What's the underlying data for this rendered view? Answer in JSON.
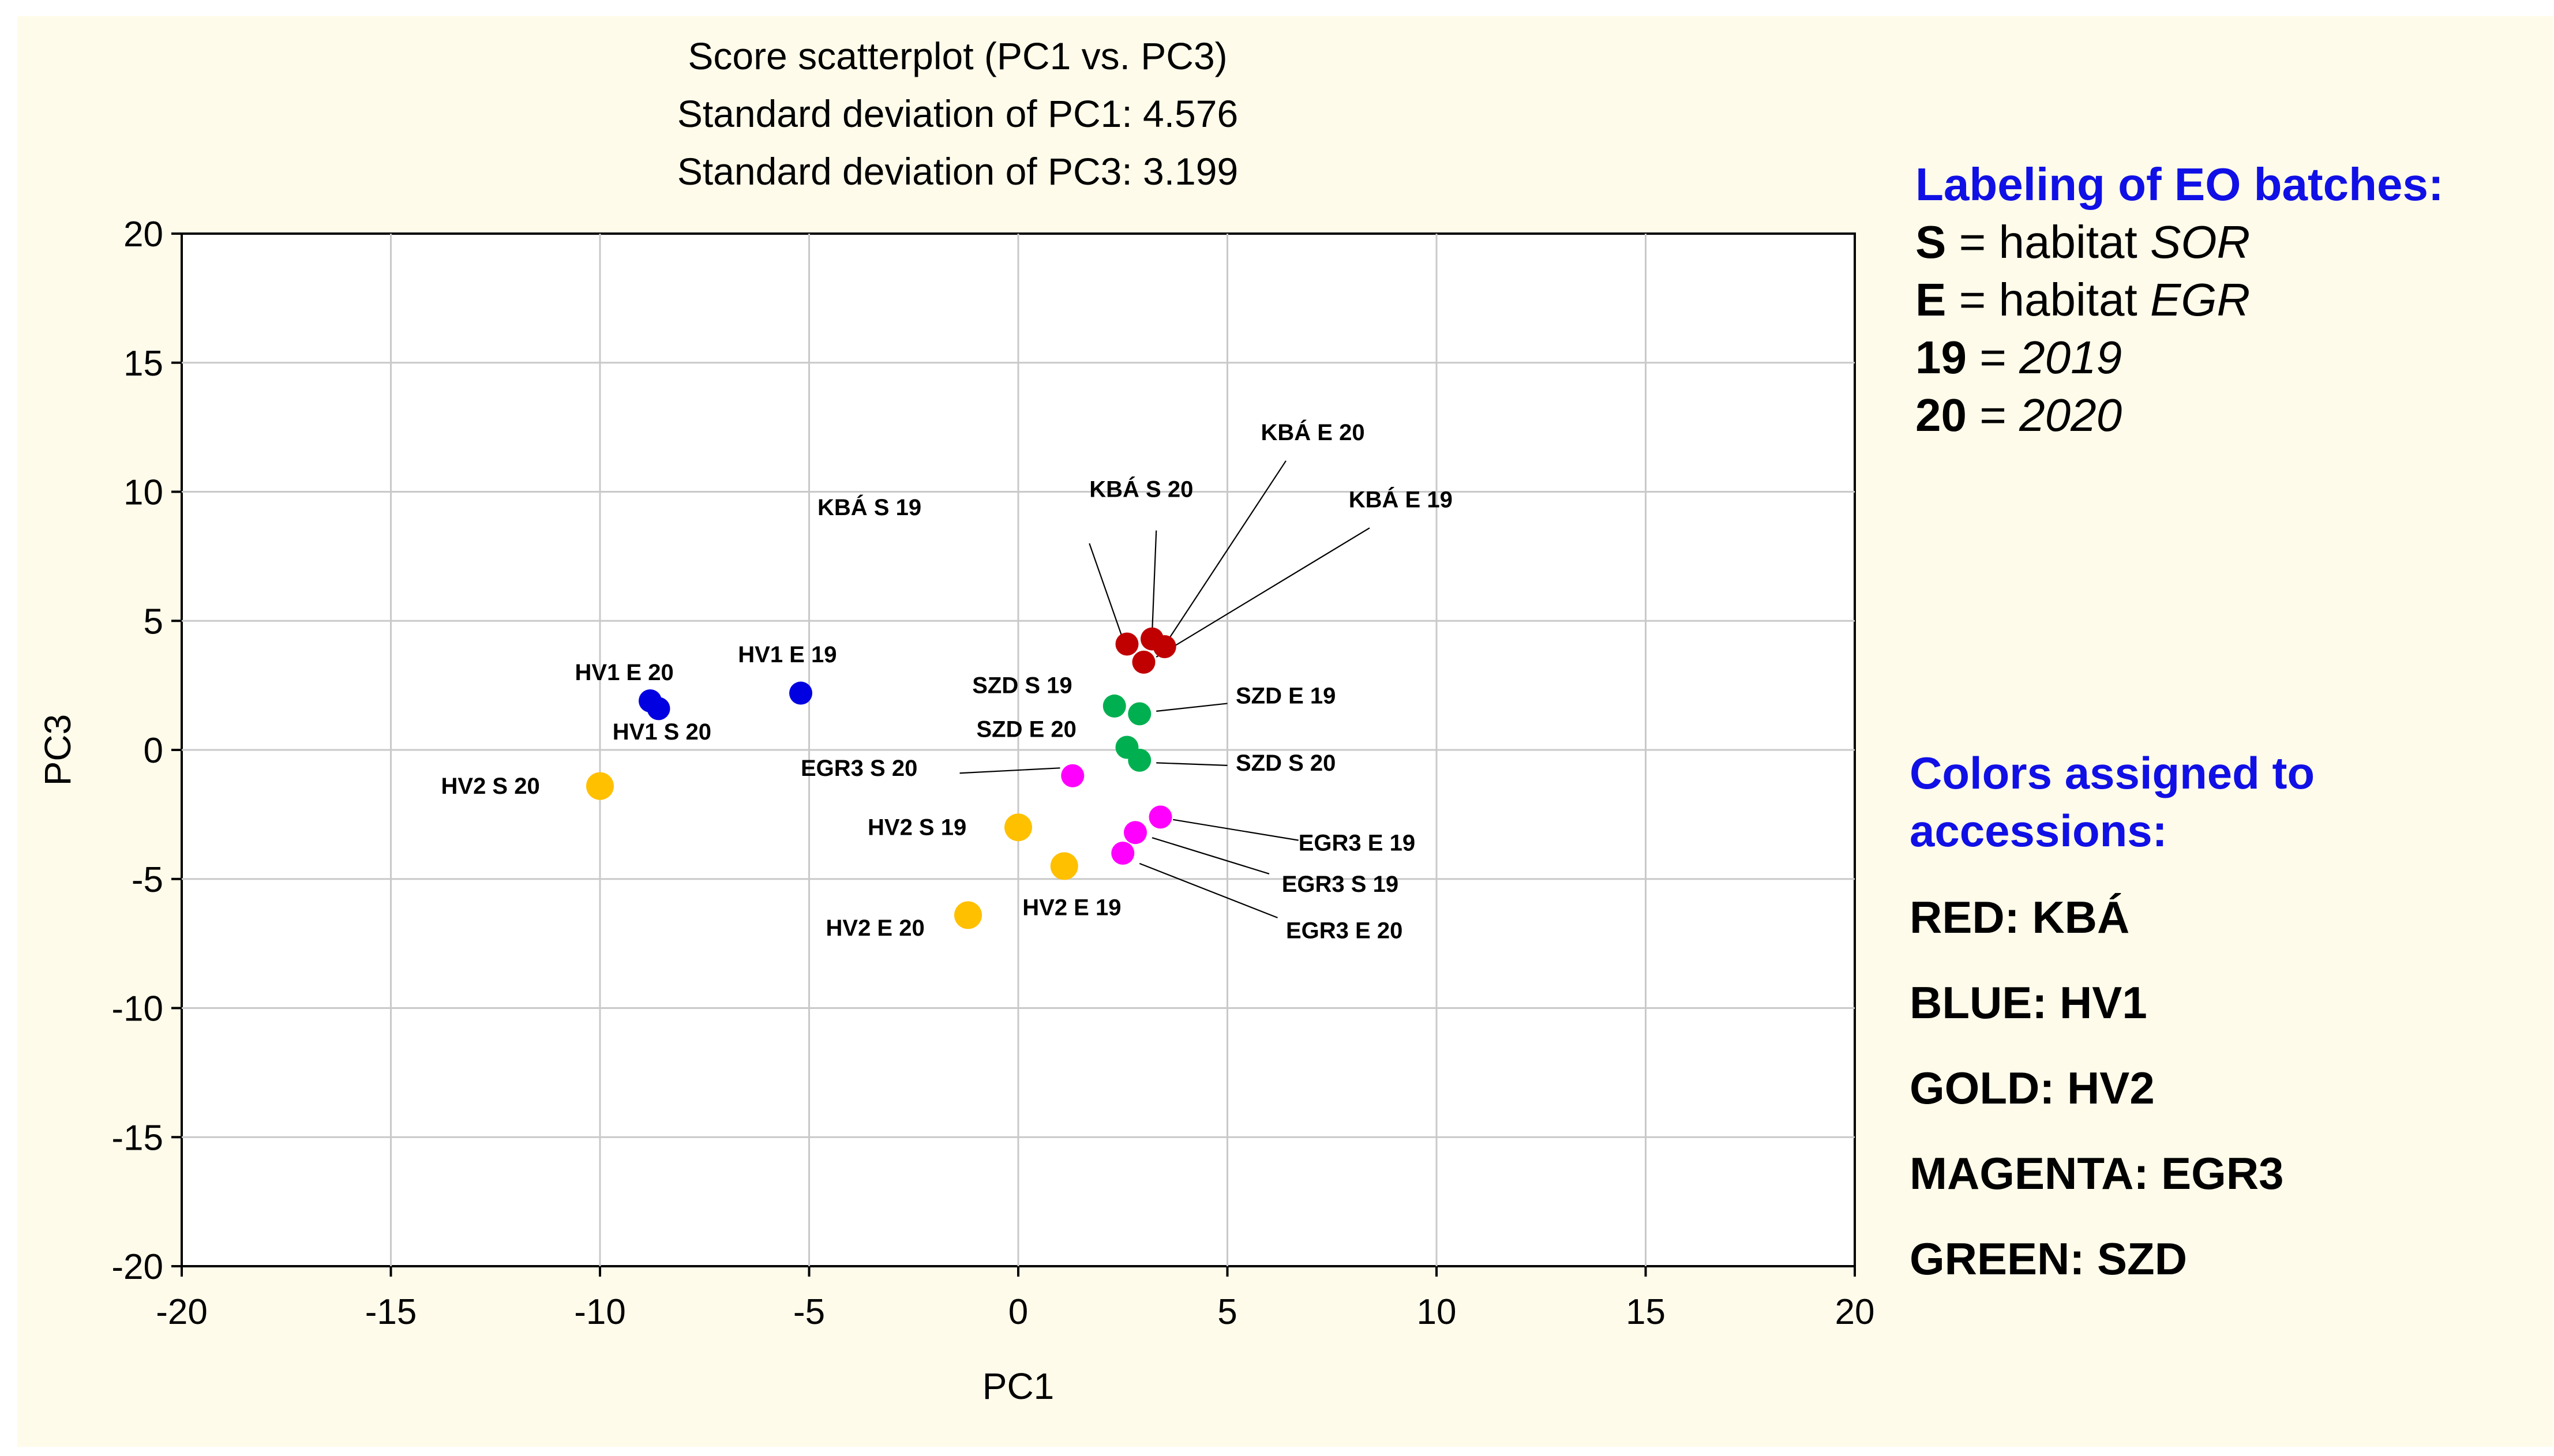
{
  "chart_data": {
    "type": "scatter",
    "title_lines": [
      "Score scatterplot (PC1 vs. PC3)",
      "Standard deviation of PC1: 4.576",
      "Standard deviation of PC3: 3.199"
    ],
    "xlabel": "PC1",
    "ylabel": "PC3",
    "xlim": [
      -20,
      20
    ],
    "ylim": [
      -20,
      20
    ],
    "xticks": [
      -20,
      -15,
      -10,
      -5,
      0,
      5,
      10,
      15,
      20
    ],
    "yticks": [
      -20,
      -15,
      -10,
      -5,
      0,
      5,
      10,
      15,
      20
    ],
    "grid": true,
    "points": [
      {
        "label": "KBÁ S 19",
        "group": "KBA",
        "x": 2.6,
        "y": 4.1,
        "label_x": -4.8,
        "label_y": 9.1,
        "anchor": "start",
        "leader": [
          1.7,
          8.0,
          2.5,
          4.3
        ]
      },
      {
        "label": "KBÁ S 20",
        "group": "KBA",
        "x": 3.2,
        "y": 4.3,
        "label_x": 1.7,
        "label_y": 9.8,
        "anchor": "start",
        "leader": [
          3.3,
          8.5,
          3.2,
          4.5
        ]
      },
      {
        "label": "KBÁ E 20",
        "group": "KBA",
        "x": 3.5,
        "y": 4.0,
        "label_x": 5.8,
        "label_y": 12.0,
        "anchor": "start",
        "leader": [
          6.4,
          11.2,
          3.6,
          4.3
        ]
      },
      {
        "label": "KBÁ E 19",
        "group": "KBA",
        "x": 3.0,
        "y": 3.4,
        "label_x": 7.9,
        "label_y": 9.4,
        "anchor": "start",
        "leader": [
          8.4,
          8.6,
          3.3,
          3.6
        ]
      },
      {
        "label": "HV1 E 19",
        "group": "HV1",
        "x": -5.2,
        "y": 2.2,
        "label_x": -6.7,
        "label_y": 3.4,
        "anchor": "start",
        "leader": null
      },
      {
        "label": "HV1 E 20",
        "group": "HV1",
        "x": -8.8,
        "y": 1.9,
        "label_x": -10.6,
        "label_y": 2.7,
        "anchor": "start",
        "leader": null
      },
      {
        "label": "HV1 S 20",
        "group": "HV1",
        "x": -8.6,
        "y": 1.6,
        "label_x": -9.7,
        "label_y": 0.4,
        "anchor": "start",
        "leader": null
      },
      {
        "label": "HV2 S 20",
        "group": "HV2",
        "x": -10.0,
        "y": -1.4,
        "label_x": -13.8,
        "label_y": -1.7,
        "anchor": "start",
        "leader": null
      },
      {
        "label": "HV2 S 19",
        "group": "HV2",
        "x": 0.0,
        "y": -3.0,
        "label_x": -3.6,
        "label_y": -3.3,
        "anchor": "start",
        "leader": null
      },
      {
        "label": "HV2 E 19",
        "group": "HV2",
        "x": 1.1,
        "y": -4.5,
        "label_x": 0.1,
        "label_y": -6.4,
        "anchor": "start",
        "leader": null
      },
      {
        "label": "HV2 E 20",
        "group": "HV2",
        "x": -1.2,
        "y": -6.4,
        "label_x": -4.6,
        "label_y": -7.2,
        "anchor": "start",
        "leader": null
      },
      {
        "label": "SZD S 19",
        "group": "SZD",
        "x": 2.3,
        "y": 1.7,
        "label_x": -1.1,
        "label_y": 2.2,
        "anchor": "start",
        "leader": null
      },
      {
        "label": "SZD E 19",
        "group": "SZD",
        "x": 2.9,
        "y": 1.4,
        "label_x": 5.2,
        "label_y": 1.8,
        "anchor": "start",
        "leader": [
          5.0,
          1.8,
          3.3,
          1.5
        ]
      },
      {
        "label": "SZD E 20",
        "group": "SZD",
        "x": 2.6,
        "y": 0.1,
        "label_x": -1.0,
        "label_y": 0.5,
        "anchor": "start",
        "leader": null
      },
      {
        "label": "SZD S 20",
        "group": "SZD",
        "x": 2.9,
        "y": -0.4,
        "label_x": 5.2,
        "label_y": -0.8,
        "anchor": "start",
        "leader": [
          5.0,
          -0.6,
          3.3,
          -0.5
        ]
      },
      {
        "label": "EGR3 S 20",
        "group": "EGR3",
        "x": 1.3,
        "y": -1.0,
        "label_x": -5.2,
        "label_y": -1.0,
        "anchor": "start",
        "leader": [
          -1.4,
          -0.9,
          1.0,
          -0.7
        ]
      },
      {
        "label": "EGR3 E 19",
        "group": "EGR3",
        "x": 3.4,
        "y": -2.6,
        "label_x": 6.7,
        "label_y": -3.9,
        "anchor": "start",
        "leader": [
          6.7,
          -3.5,
          3.7,
          -2.7
        ]
      },
      {
        "label": "EGR3 S 19",
        "group": "EGR3",
        "x": 2.8,
        "y": -3.2,
        "label_x": 6.3,
        "label_y": -5.5,
        "anchor": "start",
        "leader": [
          6.0,
          -4.8,
          3.2,
          -3.4
        ]
      },
      {
        "label": "EGR3 E 20",
        "group": "EGR3",
        "x": 2.5,
        "y": -4.0,
        "label_x": 6.4,
        "label_y": -7.3,
        "anchor": "start",
        "leader": [
          6.2,
          -6.5,
          2.9,
          -4.4
        ]
      }
    ],
    "group_colors": {
      "KBA": "#c00000",
      "HV1": "#0000e0",
      "HV2": "#ffc000",
      "EGR3": "#ff00ff",
      "SZD": "#00b050"
    }
  },
  "legend": {
    "heading": "Labeling of EO batches:",
    "items": [
      {
        "key": "S",
        "text": " = habitat ",
        "value": "SOR"
      },
      {
        "key": "E",
        "text": " = habitat ",
        "value": "EGR"
      },
      {
        "key": "19",
        "text": " = ",
        "value": "2019"
      },
      {
        "key": "20",
        "text": " = ",
        "value": "2020"
      }
    ]
  },
  "colors_panel": {
    "heading_line1": "Colors assigned to",
    "heading_line2": "accessions:",
    "items": [
      "RED: KBÁ",
      "BLUE: HV1",
      "GOLD: HV2",
      "MAGENTA: EGR3",
      "GREEN: SZD"
    ]
  }
}
